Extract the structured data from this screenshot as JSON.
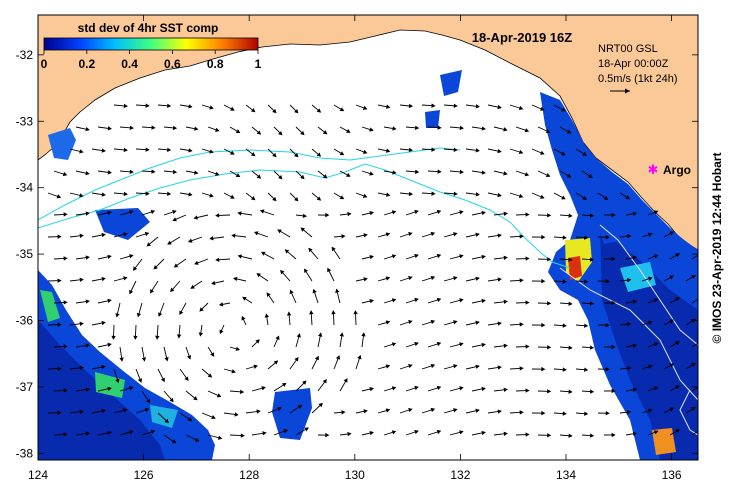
{
  "title": "18-Apr-2019 16Z",
  "colorbar": {
    "label": "std dev of 4hr SST comp",
    "ticks": [
      "0",
      "0.2",
      "0.4",
      "0.6",
      "0.8",
      "1"
    ],
    "range": [
      0,
      1
    ],
    "colors": [
      "#00008b",
      "#0040ff",
      "#00c0ff",
      "#40ff80",
      "#ffff00",
      "#ff8000",
      "#b00000"
    ]
  },
  "current_info": {
    "product": "NRT00 GSL",
    "time": "18-Apr 00:00Z",
    "scale": "0.5m/s (1kt 24h)"
  },
  "argo": {
    "label": "Argo",
    "lon": 135.4,
    "lat": -33.65,
    "color": "#ff00ff"
  },
  "credit": "© IMOS 23-Apr-2019 12:44 Hobart",
  "axes": {
    "lon_range": [
      124,
      136.5
    ],
    "lat_range": [
      -38.1,
      -31.4
    ],
    "x_ticks": [
      "124",
      "126",
      "128",
      "130",
      "132",
      "134",
      "136"
    ],
    "y_ticks": [
      "-32",
      "-33",
      "-34",
      "-35",
      "-36",
      "-37",
      "-38"
    ]
  },
  "colors": {
    "land": "#fbc898",
    "sea_nodata": "#ffffff",
    "contour": "#22d6e6",
    "bathy": "#dde6f0",
    "arrows": "#000000"
  }
}
